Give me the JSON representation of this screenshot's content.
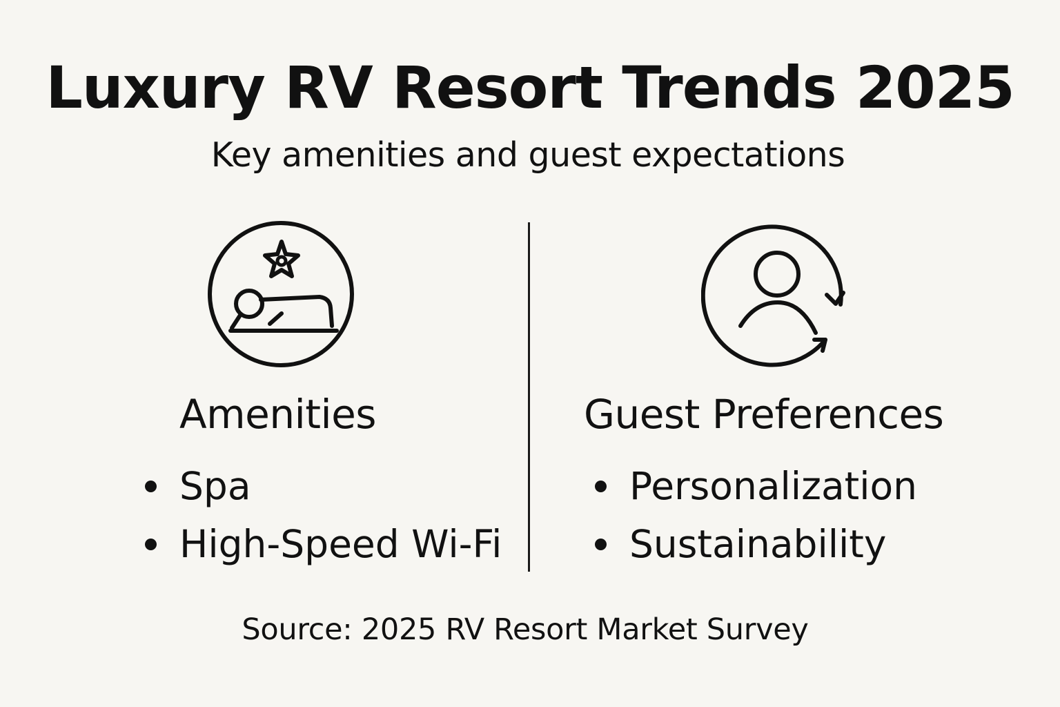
{
  "header": {
    "title": "Luxury RV Resort Trends 2025",
    "subtitle": "Key amenities and guest expectations"
  },
  "left_panel": {
    "icon": "spa-massage-icon",
    "heading": "Amenities",
    "items": [
      {
        "label": "Spa"
      },
      {
        "label": "High-Speed Wi-Fi"
      }
    ]
  },
  "right_panel": {
    "icon": "user-cycle-icon",
    "heading": "Guest Preferences",
    "items": [
      {
        "label": "Personalization"
      },
      {
        "label": "Sustainability"
      }
    ]
  },
  "footer": {
    "source": "Source: 2025 RV Resort Market Survey"
  },
  "colors": {
    "background": "#f7f6f2",
    "ink": "#111111"
  }
}
